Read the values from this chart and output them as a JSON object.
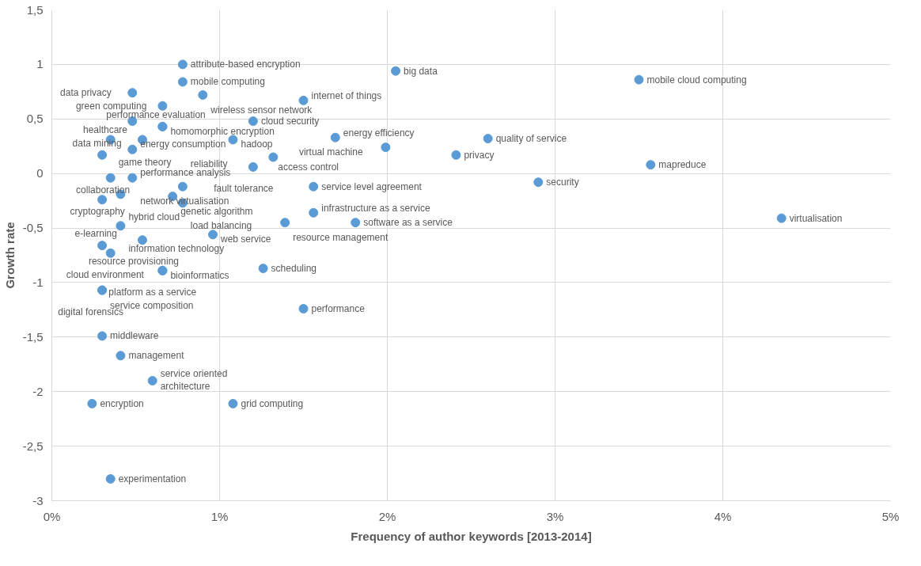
{
  "chart_data": {
    "type": "scatter",
    "xlabel": "Frequency of author keywords [2013-2014]",
    "ylabel": "Growth rate",
    "marker": "circle",
    "grid": true,
    "xlim": [
      0,
      5
    ],
    "xticks": [
      {
        "value": 0,
        "label": "0%"
      },
      {
        "value": 1,
        "label": "1%"
      },
      {
        "value": 2,
        "label": "2%"
      },
      {
        "value": 3,
        "label": "3%"
      },
      {
        "value": 4,
        "label": "4%"
      },
      {
        "value": 5,
        "label": "5%"
      }
    ],
    "ylim": [
      -3,
      1.5
    ],
    "yticks": [
      -3,
      {
        "value": -2.5,
        "label": "-2,5"
      },
      -2,
      {
        "value": -1.5,
        "label": "-1,5"
      },
      -1,
      {
        "value": -0.5,
        "label": "-0,5"
      },
      0,
      {
        "value": 0.5,
        "label": "0,5"
      },
      1,
      {
        "value": 1.5,
        "label": "1,5"
      }
    ],
    "series": [
      {
        "color": "#5b9bd5",
        "x": [
          0.78,
          2.05,
          3.5,
          0.48,
          0.78,
          0.9,
          1.5,
          0.66,
          0.48,
          1.2,
          0.66,
          0.66,
          0.35,
          0.54,
          1.08,
          1.69,
          1.99,
          2.6,
          2.41,
          3.57,
          0.48,
          0.3,
          1.32,
          1.2,
          0.35,
          0.48,
          0.78,
          1.56,
          2.9,
          0.41,
          0.72,
          0.3,
          0.78,
          1.56,
          0.96,
          1.81,
          4.35,
          0.41,
          1.39,
          0.54,
          0.3,
          0.35,
          0.66,
          0.66,
          1.26,
          0.3,
          0.3,
          1.5,
          0.3,
          0.41,
          0.6,
          0.24,
          1.08,
          0.35
        ],
        "values": [
          1.0,
          0.94,
          0.86,
          0.74,
          0.84,
          0.72,
          0.67,
          0.62,
          0.48,
          0.48,
          0.43,
          0.43,
          0.31,
          0.31,
          0.31,
          0.33,
          0.24,
          0.32,
          0.17,
          0.08,
          0.22,
          0.17,
          0.15,
          0.06,
          -0.04,
          -0.04,
          -0.12,
          -0.12,
          -0.08,
          -0.19,
          -0.21,
          -0.24,
          -0.27,
          -0.36,
          -0.56,
          -0.45,
          -0.41,
          -0.48,
          -0.45,
          -0.61,
          -0.66,
          -0.73,
          -0.89,
          -0.89,
          -0.87,
          -1.07,
          -1.07,
          -1.24,
          -1.49,
          -1.67,
          -1.9,
          -2.11,
          -2.11,
          -2.8
        ]
      }
    ],
    "annotations": [
      {
        "text": "attribute-based encryption",
        "x": 0.78,
        "y": 1.0
      },
      {
        "text": "big data",
        "x": 2.05,
        "y": 0.94
      },
      {
        "text": "mobile cloud computing",
        "x": 3.5,
        "y": 0.86
      },
      {
        "text": "data privacy",
        "x": 0.48,
        "y": 0.74
      },
      {
        "text": "mobile computing",
        "x": 0.78,
        "y": 0.84
      },
      {
        "text": "wireless sensor network",
        "x": 0.9,
        "y": 0.72
      },
      {
        "text": "internet of things",
        "x": 1.5,
        "y": 0.67
      },
      {
        "text": "green computing",
        "x": 0.66,
        "y": 0.62
      },
      {
        "text": "energy consumption",
        "x": 0.48,
        "y": 0.48
      },
      {
        "text": "cloud security",
        "x": 1.2,
        "y": 0.48
      },
      {
        "text": "homomorphic encryption",
        "x": 0.66,
        "y": 0.43
      },
      {
        "text": "performance evaluation",
        "x": 0.66,
        "y": 0.43
      },
      {
        "text": "game theory",
        "x": 0.35,
        "y": 0.31
      },
      {
        "text": "healthcare",
        "x": 0.54,
        "y": 0.31
      },
      {
        "text": "hadoop",
        "x": 1.08,
        "y": 0.31
      },
      {
        "text": "energy efficiency",
        "x": 1.69,
        "y": 0.33
      },
      {
        "text": "virtual machine",
        "x": 1.99,
        "y": 0.24
      },
      {
        "text": "quality of service",
        "x": 2.6,
        "y": 0.32
      },
      {
        "text": "privacy",
        "x": 2.41,
        "y": 0.17
      },
      {
        "text": "mapreduce",
        "x": 3.57,
        "y": 0.08
      },
      {
        "text": "performance analysis",
        "x": 0.48,
        "y": 0.22
      },
      {
        "text": "data mining",
        "x": 0.3,
        "y": 0.17
      },
      {
        "text": "access control",
        "x": 1.32,
        "y": 0.15
      },
      {
        "text": "fault tolerance",
        "x": 1.2,
        "y": 0.06
      },
      {
        "text": "collaboration",
        "x": 0.35,
        "y": -0.04
      },
      {
        "text": "network virtualisation",
        "x": 0.48,
        "y": -0.04
      },
      {
        "text": "reliability",
        "x": 0.78,
        "y": -0.12
      },
      {
        "text": "service level agreement",
        "x": 1.56,
        "y": -0.12
      },
      {
        "text": "security",
        "x": 2.9,
        "y": -0.08
      },
      {
        "text": "hybrid cloud",
        "x": 0.41,
        "y": -0.19
      },
      {
        "text": "genetic algorithm",
        "x": 0.72,
        "y": -0.21
      },
      {
        "text": "cryptography",
        "x": 0.3,
        "y": -0.24
      },
      {
        "text": "load balancing",
        "x": 0.78,
        "y": -0.27
      },
      {
        "text": "infrastructure as a service",
        "x": 1.56,
        "y": -0.36
      },
      {
        "text": "web service",
        "x": 0.96,
        "y": -0.56
      },
      {
        "text": "software as a service",
        "x": 1.81,
        "y": -0.45
      },
      {
        "text": "virtualisation",
        "x": 4.35,
        "y": -0.41
      },
      {
        "text": "information technology",
        "x": 0.41,
        "y": -0.48
      },
      {
        "text": "resource management",
        "x": 1.39,
        "y": -0.45
      },
      {
        "text": "resource provisioning",
        "x": 0.54,
        "y": -0.61
      },
      {
        "text": "e-learning",
        "x": 0.3,
        "y": -0.66
      },
      {
        "text": "cloud environment",
        "x": 0.35,
        "y": -0.73
      },
      {
        "text": "bioinformatics",
        "x": 0.66,
        "y": -0.89
      },
      {
        "text": "platform as a service",
        "x": 0.66,
        "y": -0.89
      },
      {
        "text": "scheduling",
        "x": 1.26,
        "y": -0.87
      },
      {
        "text": "service composition",
        "x": 0.3,
        "y": -1.07
      },
      {
        "text": "digital forensics",
        "x": 0.3,
        "y": -1.07
      },
      {
        "text": "performance",
        "x": 1.5,
        "y": -1.24
      },
      {
        "text": "middleware",
        "x": 0.3,
        "y": -1.49
      },
      {
        "text": "management",
        "x": 0.41,
        "y": -1.67
      },
      {
        "text": "service oriented\narchitecture",
        "x": 0.6,
        "y": -1.9
      },
      {
        "text": "encryption",
        "x": 0.24,
        "y": -2.11
      },
      {
        "text": "grid computing",
        "x": 1.08,
        "y": -2.11
      },
      {
        "text": "experimentation",
        "x": 0.35,
        "y": -2.8
      }
    ]
  }
}
